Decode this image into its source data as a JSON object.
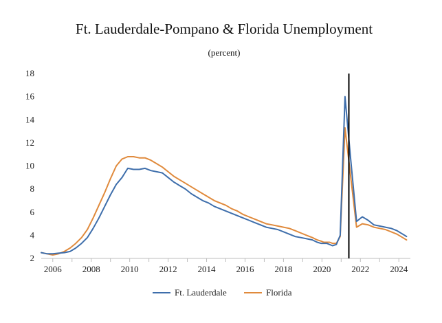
{
  "chart_data": {
    "type": "line",
    "title": "Ft. Lauderdale-Pompano & Florida Unemployment",
    "subtitle": "(percent)",
    "xlabel": "",
    "ylabel": "",
    "xlim": [
      2005.4,
      2024.6
    ],
    "ylim": [
      2,
      18
    ],
    "x_ticks": [
      2006,
      2008,
      2010,
      2012,
      2014,
      2016,
      2018,
      2020,
      2022,
      2024
    ],
    "x_tick_labels": [
      "2006",
      "2008",
      "2010",
      "2012",
      "2014",
      "2016",
      "2018",
      "2020",
      "2022",
      "2024"
    ],
    "y_ticks": [
      2,
      4,
      6,
      8,
      10,
      12,
      14,
      16,
      18
    ],
    "y_tick_labels": [
      "2",
      "4",
      "6",
      "8",
      "10",
      "12",
      "14",
      "16",
      "18"
    ],
    "vertical_line_x": 2021.4,
    "legend_position": "bottom",
    "grid": false,
    "series": [
      {
        "name": "Ft. Lauderdale",
        "color": "#3e6eab",
        "x": [
          2005.4,
          2005.7,
          2006.0,
          2006.3,
          2006.6,
          2006.9,
          2007.2,
          2007.5,
          2007.8,
          2008.1,
          2008.4,
          2008.7,
          2009.0,
          2009.3,
          2009.6,
          2009.9,
          2010.2,
          2010.5,
          2010.8,
          2011.1,
          2011.4,
          2011.7,
          2012.0,
          2012.3,
          2012.6,
          2012.9,
          2013.2,
          2013.5,
          2013.8,
          2014.1,
          2014.4,
          2014.7,
          2015.0,
          2015.3,
          2015.6,
          2015.9,
          2016.2,
          2016.5,
          2016.8,
          2017.1,
          2017.4,
          2017.7,
          2018.0,
          2018.3,
          2018.6,
          2018.9,
          2019.2,
          2019.5,
          2019.75,
          2019.95,
          2020.1,
          2020.25,
          2020.4,
          2020.55,
          2020.75,
          2020.95,
          2021.2,
          2021.5,
          2021.8,
          2022.1,
          2022.4,
          2022.7,
          2023.0,
          2023.3,
          2023.6,
          2023.9,
          2024.2,
          2024.4
        ],
        "values": [
          2.5,
          2.4,
          2.4,
          2.45,
          2.5,
          2.6,
          2.9,
          3.3,
          3.8,
          4.6,
          5.5,
          6.5,
          7.5,
          8.4,
          9.0,
          9.8,
          9.7,
          9.7,
          9.8,
          9.6,
          9.5,
          9.4,
          9.0,
          8.6,
          8.3,
          8.0,
          7.6,
          7.3,
          7.0,
          6.8,
          6.5,
          6.3,
          6.1,
          5.9,
          5.7,
          5.5,
          5.3,
          5.1,
          4.9,
          4.7,
          4.6,
          4.5,
          4.3,
          4.1,
          3.9,
          3.8,
          3.7,
          3.6,
          3.4,
          3.3,
          3.3,
          3.3,
          3.2,
          3.1,
          3.2,
          4.0,
          16.0,
          10.5,
          5.2,
          5.6,
          5.3,
          4.9,
          4.8,
          4.7,
          4.6,
          4.4,
          4.1,
          3.9
        ]
      },
      {
        "name": "Florida",
        "color": "#e08a3c",
        "x": [
          2005.4,
          2005.7,
          2006.0,
          2006.3,
          2006.6,
          2006.9,
          2007.2,
          2007.5,
          2007.8,
          2008.1,
          2008.4,
          2008.7,
          2009.0,
          2009.3,
          2009.6,
          2009.9,
          2010.2,
          2010.5,
          2010.8,
          2011.1,
          2011.4,
          2011.7,
          2012.0,
          2012.3,
          2012.6,
          2012.9,
          2013.2,
          2013.5,
          2013.8,
          2014.1,
          2014.4,
          2014.7,
          2015.0,
          2015.3,
          2015.6,
          2015.9,
          2016.2,
          2016.5,
          2016.8,
          2017.1,
          2017.4,
          2017.7,
          2018.0,
          2018.3,
          2018.6,
          2018.9,
          2019.2,
          2019.5,
          2019.75,
          2019.95,
          2020.1,
          2020.25,
          2020.4,
          2020.55,
          2020.75,
          2020.95,
          2021.2,
          2021.5,
          2021.8,
          2022.1,
          2022.4,
          2022.7,
          2023.0,
          2023.3,
          2023.6,
          2023.9,
          2024.2,
          2024.4
        ],
        "values": [
          2.5,
          2.4,
          2.3,
          2.4,
          2.6,
          2.9,
          3.3,
          3.8,
          4.5,
          5.5,
          6.6,
          7.7,
          8.9,
          10.0,
          10.6,
          10.8,
          10.8,
          10.7,
          10.7,
          10.5,
          10.2,
          9.9,
          9.5,
          9.1,
          8.8,
          8.5,
          8.2,
          7.9,
          7.6,
          7.3,
          7.0,
          6.8,
          6.6,
          6.3,
          6.1,
          5.8,
          5.6,
          5.4,
          5.2,
          5.0,
          4.9,
          4.8,
          4.7,
          4.6,
          4.4,
          4.2,
          4.0,
          3.8,
          3.6,
          3.5,
          3.4,
          3.4,
          3.4,
          3.3,
          3.3,
          3.9,
          13.3,
          9.0,
          4.7,
          5.0,
          4.9,
          4.7,
          4.6,
          4.5,
          4.3,
          4.1,
          3.8,
          3.6
        ]
      }
    ]
  }
}
